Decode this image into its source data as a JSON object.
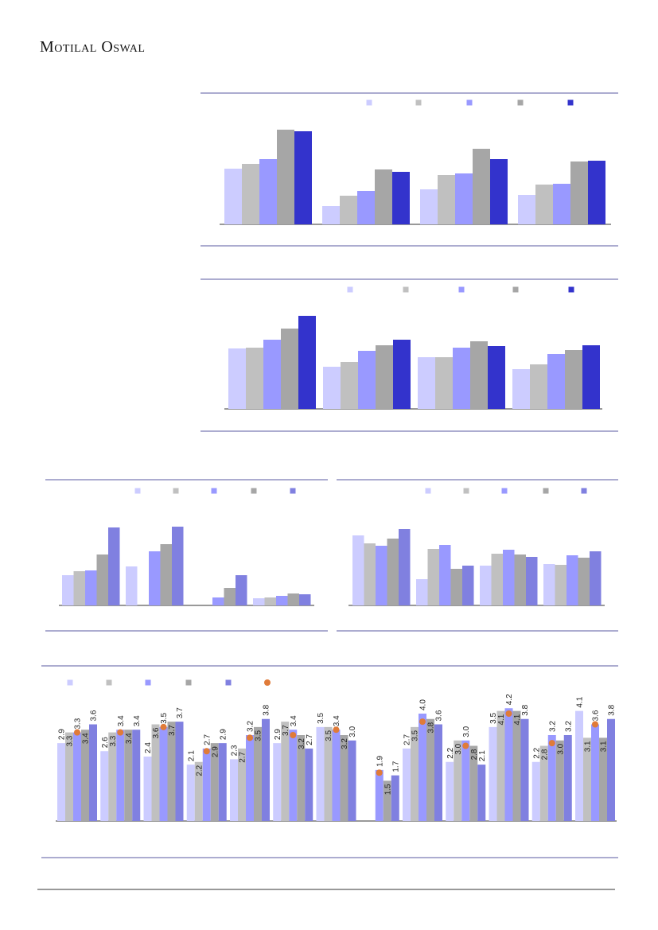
{
  "header": {
    "logo": "Motilal Oswal"
  },
  "chart_data": [
    {
      "type": "bar",
      "categories": [
        null,
        null,
        null,
        null
      ],
      "series": [
        {
          "color": "#ccccff",
          "values": [
            70,
            23,
            44,
            37
          ]
        },
        {
          "color": "#c0c0c0",
          "values": [
            76,
            36,
            62,
            50
          ]
        },
        {
          "color": "#9999ff",
          "values": [
            82,
            42,
            64,
            51
          ]
        },
        {
          "color": "#a6a6a6",
          "values": [
            119,
            69,
            95,
            79
          ]
        },
        {
          "color": "#3333cc",
          "values": [
            117,
            66,
            82,
            80
          ]
        }
      ]
    },
    {
      "type": "bar",
      "categories": [
        null,
        null,
        null,
        null
      ],
      "series": [
        {
          "color": "#ccccff",
          "values": [
            76,
            53,
            65,
            50
          ]
        },
        {
          "color": "#c0c0c0",
          "values": [
            77,
            59,
            65,
            56
          ]
        },
        {
          "color": "#9999ff",
          "values": [
            87,
            73,
            77,
            69
          ]
        },
        {
          "color": "#a6a6a6",
          "values": [
            101,
            80,
            85,
            74
          ]
        },
        {
          "color": "#3333cc",
          "values": [
            117,
            87,
            79,
            80
          ]
        }
      ]
    },
    {
      "type": "bar",
      "categories": [
        null,
        null,
        null,
        null
      ],
      "series": [
        {
          "color": "#ccccff",
          "values": [
            38,
            49,
            null,
            9
          ]
        },
        {
          "color": "#c0c0c0",
          "values": [
            43,
            null,
            null,
            10
          ]
        },
        {
          "color": "#9999ff",
          "values": [
            44,
            68,
            10,
            12
          ]
        },
        {
          "color": "#a6a6a6",
          "values": [
            64,
            77,
            22,
            15
          ]
        },
        {
          "color": "#8080e0",
          "values": [
            98,
            99,
            38,
            14
          ]
        }
      ]
    },
    {
      "type": "bar",
      "categories": [
        null,
        null,
        null,
        null
      ],
      "series": [
        {
          "color": "#ccccff",
          "values": [
            88,
            33,
            50,
            52
          ]
        },
        {
          "color": "#c0c0c0",
          "values": [
            78,
            71,
            65,
            51
          ]
        },
        {
          "color": "#9999ff",
          "values": [
            75,
            76,
            70,
            63
          ]
        },
        {
          "color": "#a6a6a6",
          "values": [
            84,
            46,
            64,
            60
          ]
        },
        {
          "color": "#8080e0",
          "values": [
            96,
            50,
            61,
            68
          ]
        }
      ]
    },
    {
      "type": "bar",
      "categories": [
        null,
        null,
        null,
        null,
        null,
        null,
        null,
        null,
        null,
        null,
        null,
        null,
        null
      ],
      "series": [
        {
          "color": "#ccccff",
          "values": [
            2.9,
            2.6,
            2.4,
            2.1,
            2.3,
            2.9,
            3.5,
            null,
            2.7,
            2.2,
            3.5,
            2.2,
            4.1
          ],
          "value_labels": [
            "2.9",
            "2.6",
            "2.4",
            "2.1",
            "2.3",
            "2.9",
            "3.5",
            null,
            "2.7",
            "2.2",
            "3.5",
            "2.2",
            "4.1"
          ]
        },
        {
          "color": "#c0c0c0",
          "values": [
            3.3,
            3.3,
            3.6,
            2.2,
            2.7,
            3.7,
            3.5,
            null,
            3.5,
            3.0,
            4.1,
            2.8,
            3.1
          ],
          "value_labels": [
            "3.3",
            "3.3",
            "3.6",
            "2.2",
            "2.7",
            "3.7",
            "3.5",
            null,
            "3.5",
            "3.0",
            "4.1",
            "2.8",
            "3.1"
          ]
        },
        {
          "color": "#9999ff",
          "values": [
            3.3,
            3.4,
            3.5,
            2.7,
            3.2,
            3.4,
            3.4,
            1.9,
            4.0,
            3.0,
            4.2,
            3.2,
            3.6
          ],
          "value_labels": [
            "3.3",
            "3.4",
            "3.5",
            "2.7",
            "3.2",
            "3.4",
            "3.4",
            "1.9",
            "4.0",
            "3.0",
            "4.2",
            "3.2",
            "3.6"
          ]
        },
        {
          "color": "#a6a6a6",
          "values": [
            3.4,
            3.4,
            3.7,
            2.9,
            3.5,
            3.2,
            3.2,
            1.5,
            3.8,
            2.8,
            4.1,
            3.0,
            3.1
          ],
          "value_labels": [
            "3.4",
            "3.4",
            "3.7",
            "2.9",
            "3.5",
            "3.2",
            "3.2",
            "1.5",
            "3.8",
            "2.8",
            "4.1",
            "3.0",
            "3.1"
          ]
        },
        {
          "color": "#8080e0",
          "values": [
            3.6,
            3.4,
            3.7,
            2.9,
            3.8,
            2.7,
            3.0,
            1.7,
            3.6,
            2.1,
            3.8,
            3.2,
            3.8
          ],
          "value_labels": [
            "3.6",
            "3.4",
            "3.7",
            "2.9",
            "3.8",
            "2.7",
            "3.0",
            "1.7",
            "3.6",
            "2.1",
            "3.8",
            "3.2",
            "3.8"
          ]
        }
      ],
      "markers": {
        "color": "#e07b39",
        "values": [
          3.3,
          3.3,
          3.5,
          2.6,
          3.1,
          3.2,
          3.4,
          1.8,
          3.7,
          2.8,
          4.0,
          2.9,
          3.6
        ]
      }
    }
  ]
}
